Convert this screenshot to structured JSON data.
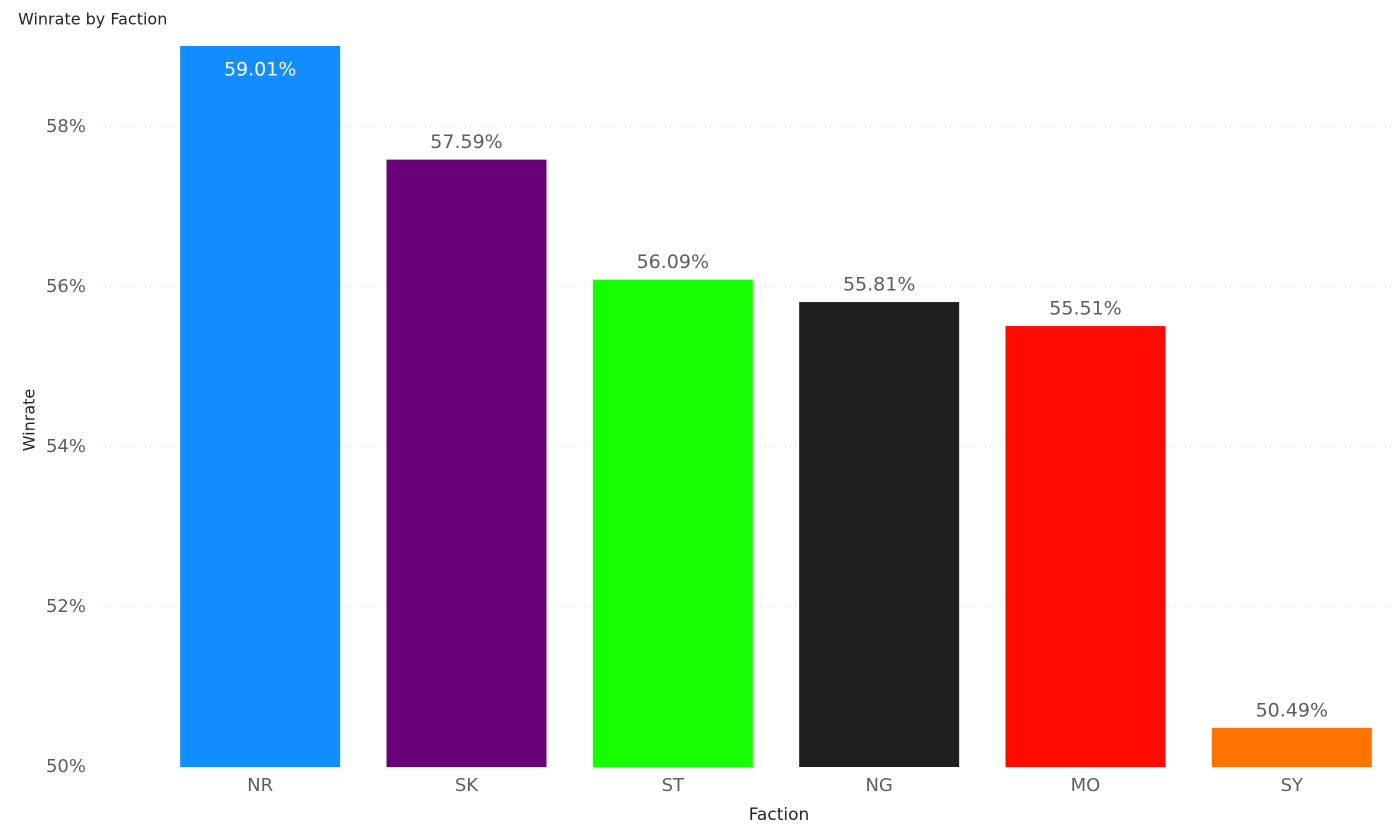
{
  "chart_data": {
    "type": "bar",
    "title": "Winrate by Faction",
    "x_label": "Faction",
    "y_label": "Winrate",
    "categories": [
      "NR",
      "SK",
      "ST",
      "NG",
      "MO",
      "SY"
    ],
    "values": [
      59.01,
      57.59,
      56.09,
      55.81,
      55.51,
      50.49
    ],
    "value_labels": [
      "59.01%",
      "57.59%",
      "56.09%",
      "55.81%",
      "55.51%",
      "50.49%"
    ],
    "colors": [
      "#118dff",
      "#6b007b",
      "#15ff00",
      "#1e1e1e",
      "#ff0a00",
      "#ff7300"
    ],
    "ylim": [
      50,
      59.01
    ],
    "yticks": [
      {
        "value": 50,
        "label": "50%"
      },
      {
        "value": 52,
        "label": "52%"
      },
      {
        "value": 54,
        "label": "54%"
      },
      {
        "value": 56,
        "label": "56%"
      },
      {
        "value": 58,
        "label": "58%"
      }
    ],
    "grid": true
  }
}
